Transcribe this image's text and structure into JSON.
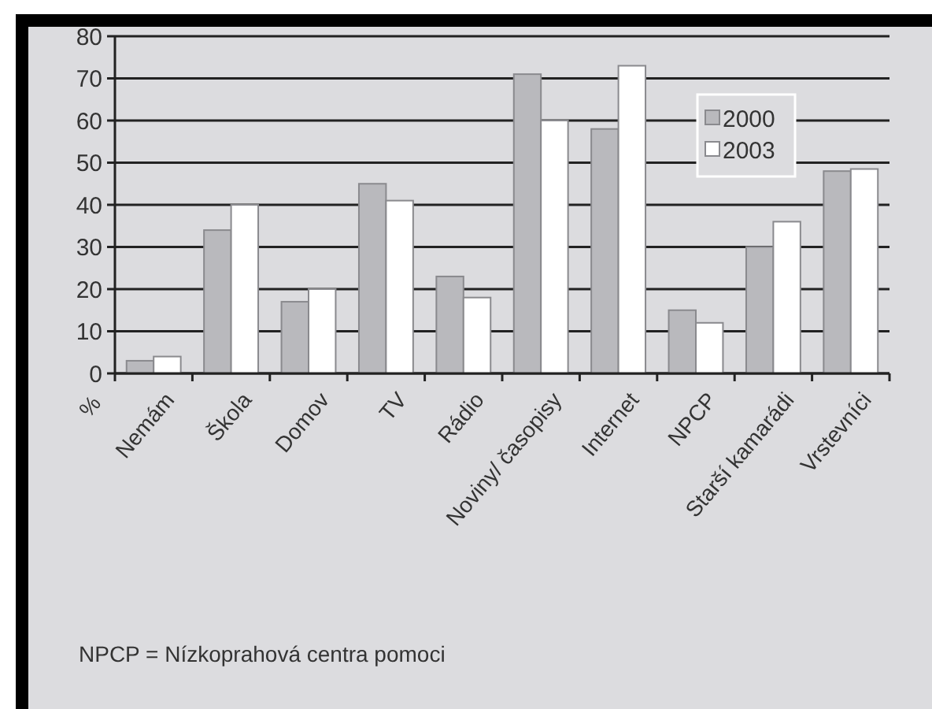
{
  "chart_data": {
    "type": "bar",
    "ylabel": "%",
    "categories": [
      "Nemám",
      "Škola",
      "Domov",
      "TV",
      "Rádio",
      "Noviny/ časopisy",
      "Internet",
      "NPCP",
      "Starší kamarádi",
      "Vrstevníci"
    ],
    "series": [
      {
        "name": "2000",
        "color": "#b9b9bd",
        "values": [
          3,
          34,
          17,
          45,
          23,
          71,
          58,
          15,
          30,
          48
        ]
      },
      {
        "name": "2003",
        "color": "#ffffff",
        "values": [
          4,
          40,
          20,
          41,
          18,
          60,
          73,
          12,
          36,
          48.5
        ]
      }
    ],
    "ylim": [
      0,
      80
    ],
    "yticks": [
      0,
      10,
      20,
      30,
      40,
      50,
      60,
      70,
      80
    ],
    "grid": "y",
    "legend": "top right",
    "annotations": [
      "NPCP = Nízkoprahová centra pomoci"
    ]
  }
}
